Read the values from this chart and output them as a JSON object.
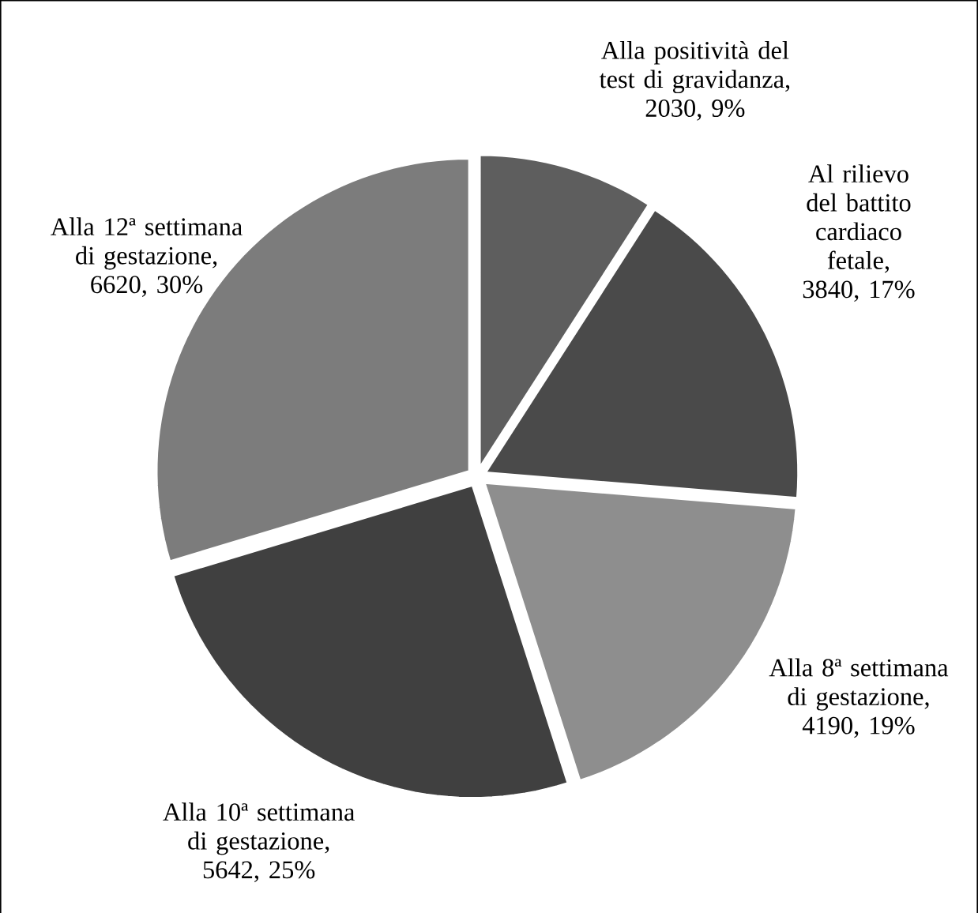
{
  "chart_data": {
    "type": "pie",
    "categories": [
      "Alla positività del test di gravidanza",
      "Al rilievo del battito cardiaco fetale",
      "Alla 8ª settimana di gestazione",
      "Alla 10ª settimana di gestazione",
      "Alla 12ª settimana di gestazione"
    ],
    "values": [
      2030,
      3840,
      4190,
      5642,
      6620
    ],
    "value_labels": [
      ", 2030, 9%",
      ", 3840, 17%",
      ", 4190, 19%",
      ", 5642, 25%",
      ", 6620, 30%"
    ],
    "colors": [
      "#5e5e5e",
      "#4a4a4a",
      "#8e8e8e",
      "#404040",
      "#7c7c7c"
    ]
  }
}
